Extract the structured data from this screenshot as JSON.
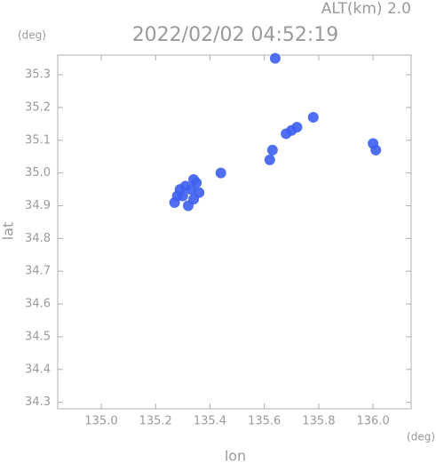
{
  "chart_data": {
    "type": "scatter",
    "title": "2022/02/02 04:52:19",
    "subtitle": "ALT(km) 2.0",
    "y_unit": "(deg)",
    "x_unit": "(deg)",
    "xlabel": "lon",
    "ylabel": "lat",
    "color": "#3d5ef0",
    "x": [
      135.33,
      135.3,
      135.35,
      135.31,
      135.34,
      135.28,
      135.36,
      135.32,
      135.27,
      135.29,
      135.34,
      135.64,
      135.63,
      135.62,
      135.7,
      135.72,
      135.68,
      135.78,
      136.0,
      136.01,
      135.44
    ],
    "y": [
      34.95,
      34.93,
      34.97,
      34.96,
      34.92,
      34.93,
      34.94,
      34.9,
      34.91,
      34.95,
      34.98,
      35.35,
      35.07,
      35.04,
      35.13,
      35.14,
      35.12,
      35.17,
      35.09,
      35.07,
      35.0
    ],
    "xlim": [
      134.84,
      136.14
    ],
    "ylim": [
      34.28,
      35.36
    ],
    "xticks": [
      {
        "value": 135,
        "label": "135.0"
      },
      135.2,
      135.4,
      135.6,
      135.8,
      {
        "value": 136,
        "label": "136.0"
      }
    ],
    "yticks": [
      34.3,
      34.4,
      34.5,
      34.6,
      34.7,
      34.8,
      34.9,
      {
        "value": 35,
        "label": "35.0"
      },
      35.1,
      35.2,
      35.3
    ]
  }
}
